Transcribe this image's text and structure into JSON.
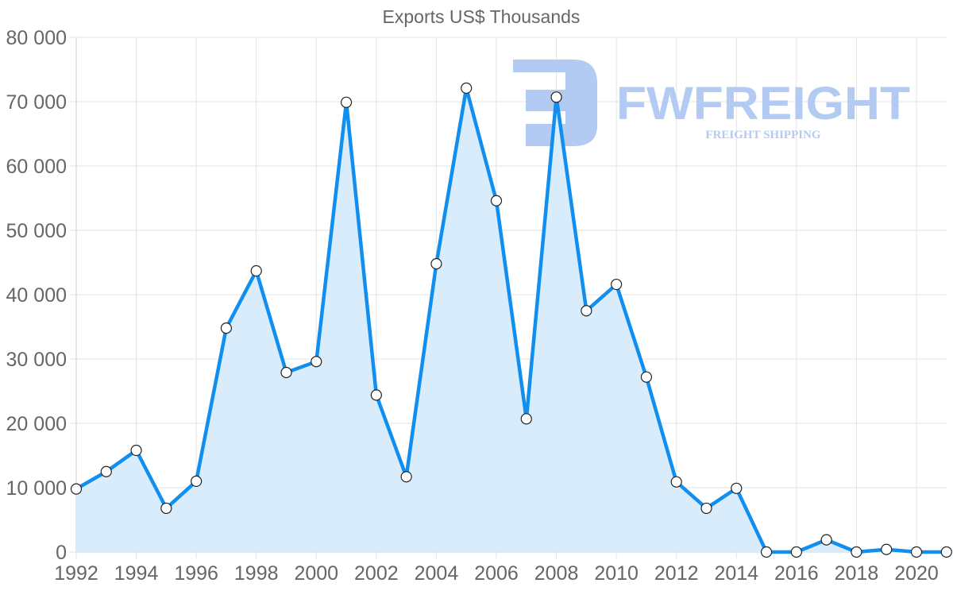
{
  "chart_data": {
    "type": "area",
    "title": "Exports US$ Thousands",
    "xlabel": "",
    "ylabel": "",
    "x": [
      1992,
      1993,
      1994,
      1995,
      1996,
      1997,
      1998,
      1999,
      2000,
      2001,
      2002,
      2003,
      2004,
      2005,
      2006,
      2007,
      2008,
      2009,
      2010,
      2011,
      2012,
      2013,
      2014,
      2015,
      2016,
      2017,
      2018,
      2019,
      2020,
      2021
    ],
    "series": [
      {
        "name": "Exports US$ Thousands",
        "values": [
          9800,
          12500,
          15800,
          6800,
          11000,
          34800,
          43700,
          27900,
          29600,
          69900,
          24400,
          11700,
          44800,
          72100,
          54600,
          20700,
          70700,
          37500,
          41600,
          27200,
          10900,
          6800,
          9900,
          0,
          0,
          1900,
          0,
          400,
          0,
          0
        ]
      }
    ],
    "ylim": [
      0,
      80000
    ],
    "y_ticks": [
      0,
      10000,
      20000,
      30000,
      40000,
      50000,
      60000,
      70000,
      80000
    ],
    "y_tick_labels": [
      "0",
      "10 000",
      "20 000",
      "30 000",
      "40 000",
      "50 000",
      "60 000",
      "70 000",
      "80 000"
    ],
    "x_tick_labels": [
      "1992",
      "1994",
      "1996",
      "1998",
      "2000",
      "2002",
      "2004",
      "2006",
      "2008",
      "2010",
      "2012",
      "2014",
      "2016",
      "2018",
      "2020"
    ],
    "grid": true,
    "legend": "none",
    "colors": {
      "line": "#118ff0",
      "fill": "#d9ecfc",
      "marker_fill": "#ffffff",
      "marker_stroke": "#222222",
      "grid": "#e3e3e3",
      "text": "#666666"
    }
  },
  "watermark": {
    "brand": "FWFREIGHT",
    "tagline": "FREIGHT SHIPPING",
    "color": "#b3caf2"
  }
}
